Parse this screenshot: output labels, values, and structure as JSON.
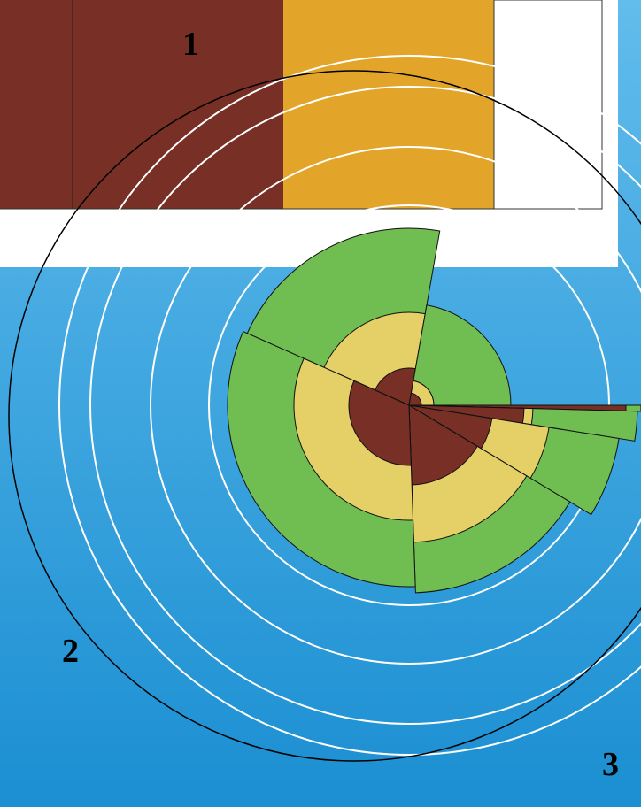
{
  "labels": {
    "panel": "1",
    "left": "2",
    "right": "3"
  }
}
